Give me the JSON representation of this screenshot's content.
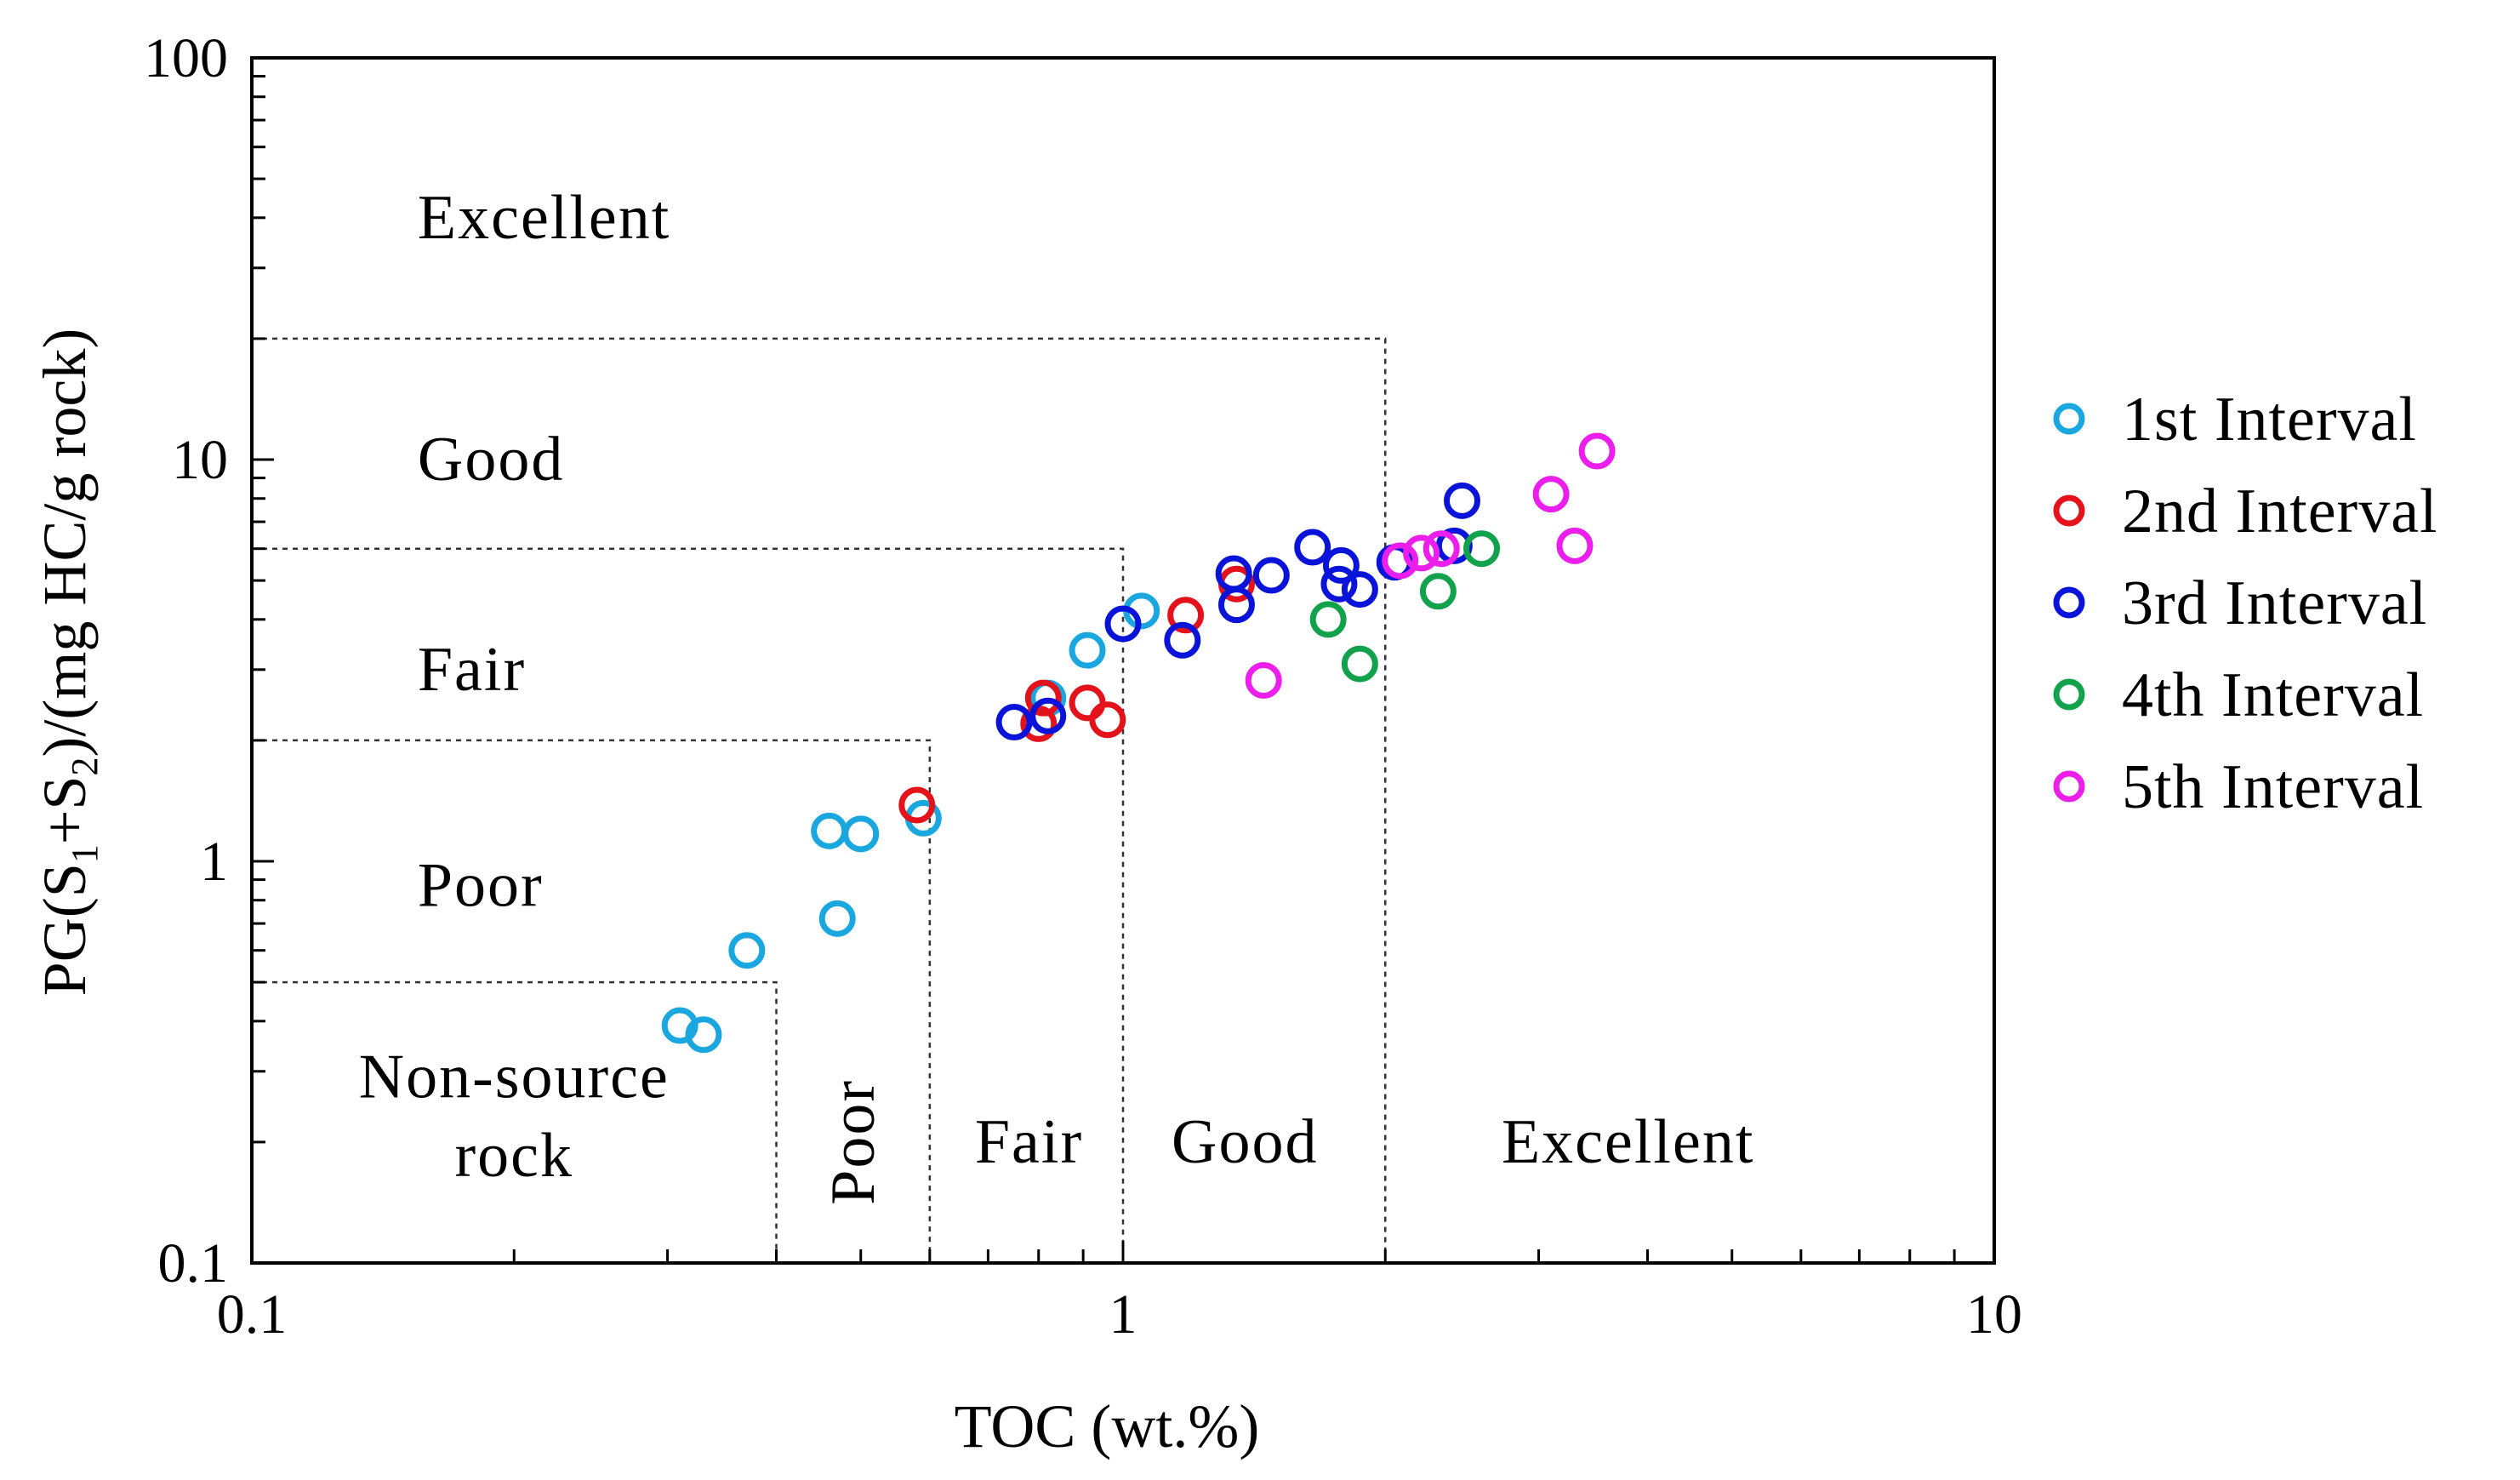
{
  "chart_data": {
    "type": "scatter",
    "xlabel": "TOC (wt.%)",
    "ylabel": {
      "pre": "PG(S",
      "sub1": "1",
      "mid": "+S",
      "sub2": "2",
      "post": ")/(mg HC/g rock)"
    },
    "x_scale": "log",
    "y_scale": "log",
    "xlim": [
      0.1,
      10
    ],
    "ylim": [
      0.1,
      100
    ],
    "x_major_ticks": [
      {
        "value": 0.1,
        "label": "0.1"
      },
      {
        "value": 1,
        "label": "1"
      },
      {
        "value": 10,
        "label": "10"
      }
    ],
    "y_major_ticks": [
      {
        "value": 0.1,
        "label": "0.1"
      },
      {
        "value": 1,
        "label": "1"
      },
      {
        "value": 10,
        "label": "10"
      },
      {
        "value": 100,
        "label": "100"
      }
    ],
    "boundaries": {
      "toc": [
        0.4,
        0.6,
        1.0,
        2.0
      ],
      "pg": [
        0.5,
        2.0,
        6.0,
        20.0
      ]
    },
    "pg_class_labels": [
      {
        "text": "Excellent",
        "x": 0.155,
        "y": 40
      },
      {
        "text": "Good",
        "x": 0.155,
        "y": 10
      },
      {
        "text": "Fair",
        "x": 0.155,
        "y": 3.0
      },
      {
        "text": "Poor",
        "x": 0.155,
        "y": 0.87
      }
    ],
    "toc_class_labels": [
      {
        "text": "Non-source",
        "x": 0.2,
        "y": 0.29
      },
      {
        "text": "rock",
        "x": 0.2,
        "y": 0.185
      },
      {
        "text": "Poor",
        "x": 0.49,
        "y": 0.2,
        "rotate": true
      },
      {
        "text": "Fair",
        "x": 0.78,
        "y": 0.2
      },
      {
        "text": "Good",
        "x": 1.38,
        "y": 0.2
      },
      {
        "text": "Excellent",
        "x": 3.8,
        "y": 0.2
      }
    ],
    "series": [
      {
        "name": "1st Interval",
        "color": "#1AA7E0",
        "points": [
          [
            0.31,
            0.39
          ],
          [
            0.33,
            0.37
          ],
          [
            0.37,
            0.6
          ],
          [
            0.46,
            1.19
          ],
          [
            0.5,
            1.17
          ],
          [
            0.47,
            0.72
          ],
          [
            0.59,
            1.28
          ],
          [
            0.82,
            2.55
          ],
          [
            0.91,
            3.35
          ],
          [
            1.05,
            4.2
          ]
        ]
      },
      {
        "name": "2nd Interval",
        "color": "#E3121B",
        "points": [
          [
            0.58,
            1.38
          ],
          [
            0.8,
            2.2
          ],
          [
            0.81,
            2.55
          ],
          [
            0.91,
            2.48
          ],
          [
            0.96,
            2.25
          ],
          [
            1.18,
            4.1
          ],
          [
            1.35,
            4.9
          ]
        ]
      },
      {
        "name": "3rd Interval",
        "color": "#0A14D8",
        "points": [
          [
            0.75,
            2.22
          ],
          [
            0.82,
            2.3
          ],
          [
            1.0,
            3.9
          ],
          [
            1.17,
            3.55
          ],
          [
            1.35,
            4.35
          ],
          [
            1.34,
            5.2
          ],
          [
            1.48,
            5.15
          ],
          [
            1.65,
            6.05
          ],
          [
            1.78,
            5.45
          ],
          [
            1.77,
            4.9
          ],
          [
            1.87,
            4.75
          ],
          [
            2.05,
            5.55
          ],
          [
            2.4,
            6.1
          ],
          [
            2.45,
            7.9
          ]
        ]
      },
      {
        "name": "4th Interval",
        "color": "#12A24B",
        "points": [
          [
            1.72,
            4.0
          ],
          [
            1.87,
            3.1
          ],
          [
            2.3,
            4.7
          ],
          [
            2.58,
            6.0
          ]
        ]
      },
      {
        "name": "5th Interval",
        "color": "#EC1EEC",
        "points": [
          [
            1.45,
            2.82
          ],
          [
            2.08,
            5.6
          ],
          [
            2.2,
            5.85
          ],
          [
            2.32,
            6.0
          ],
          [
            3.1,
            8.2
          ],
          [
            3.3,
            6.1
          ],
          [
            3.5,
            10.5
          ]
        ]
      }
    ]
  }
}
